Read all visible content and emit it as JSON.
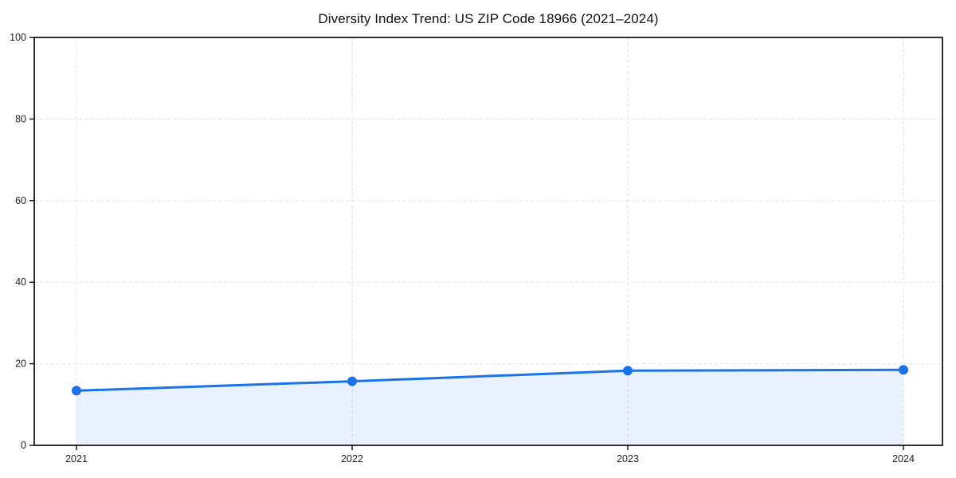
{
  "window": {
    "background": "#ffffff"
  },
  "chart_data": {
    "type": "line",
    "title": "Diversity Index Trend: US ZIP Code 18966 (2021–2024)",
    "x": [
      "2021",
      "2022",
      "2023",
      "2024"
    ],
    "series": [
      {
        "name": "Diversity Index",
        "values": [
          13.4,
          15.7,
          18.3,
          18.5
        ]
      }
    ],
    "xlabel": "",
    "ylabel": "",
    "ylim": [
      0,
      100
    ],
    "yticks": [
      0,
      20,
      40,
      60,
      80,
      100
    ],
    "xtick_labels": [
      "2021",
      "2022",
      "2023",
      "2024"
    ],
    "grid": "dashed-both",
    "legend": "none",
    "area_fill": true,
    "line_color": "#1a73e8",
    "marker_color": "#1a73e8",
    "fill_color": "rgba(26,115,232,0.10)",
    "gridline_color": "#e2e2e2",
    "axis_color": "#1a1a1a",
    "tick_label_color": "#222222"
  }
}
